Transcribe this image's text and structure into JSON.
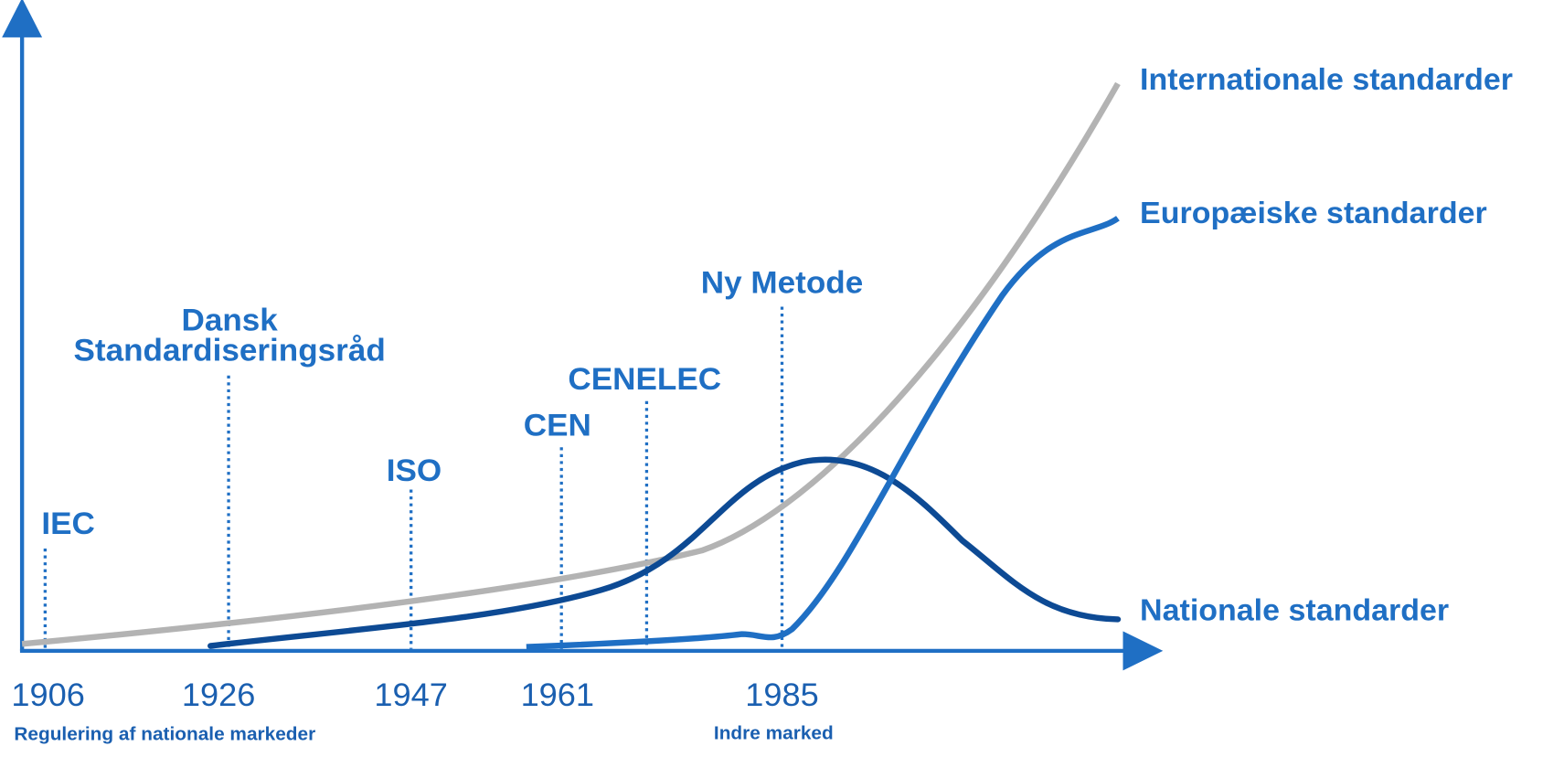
{
  "events": [
    {
      "label": "IEC"
    },
    {
      "label": [
        "Dansk",
        "Standardiseringsråd"
      ]
    },
    {
      "label": "ISO"
    },
    {
      "label": "CEN"
    },
    {
      "label": "CENELEC"
    },
    {
      "label": "Ny Metode"
    }
  ],
  "years": [
    "1906",
    "1926",
    "1947",
    "1961",
    "1985"
  ],
  "notes": [
    "Regulering af nationale markeder",
    "Indre marked"
  ],
  "curves": [
    "Internationale standarder",
    "Europæiske standarder",
    "Nationale standarder"
  ]
}
